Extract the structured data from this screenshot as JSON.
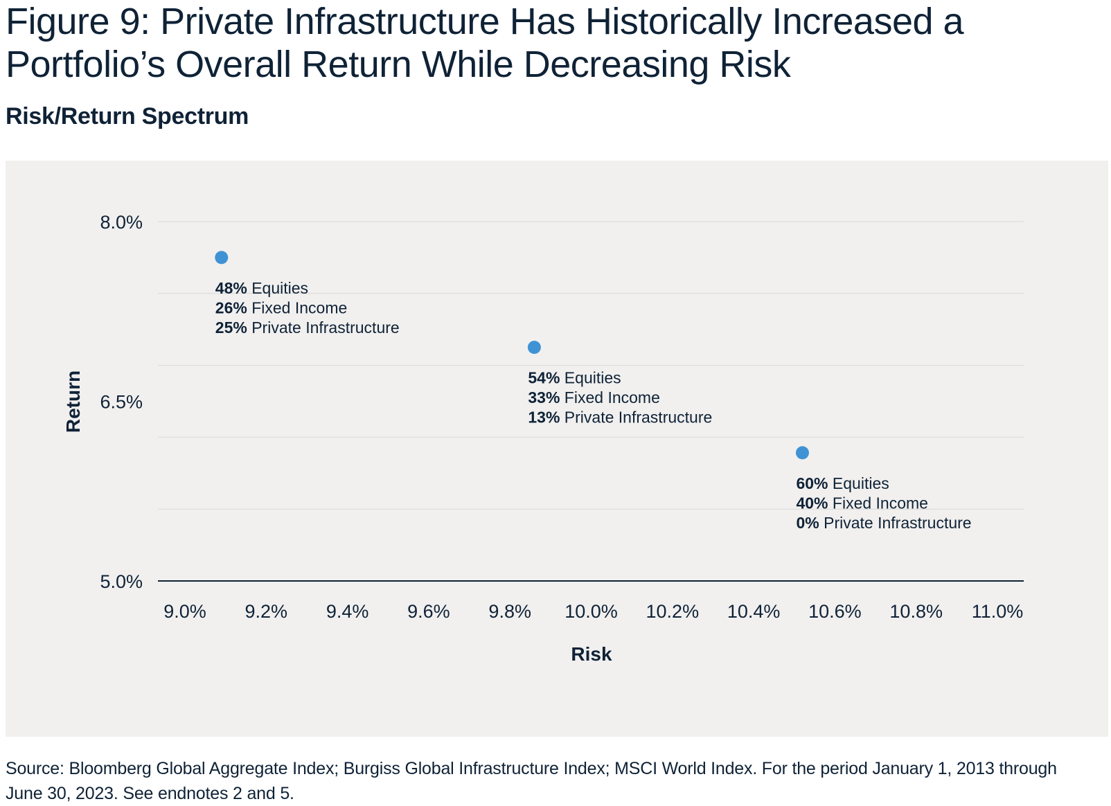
{
  "header": {
    "title": "Figure 9: Private Infrastructure Has Historically Increased a Portfolio’s Overall Return While Decreasing Risk",
    "subtitle": "Risk/Return Spectrum"
  },
  "footer": {
    "source": "Source: Bloomberg Global Aggregate Index; Burgiss Global Infrastructure Index; MSCI World Index. For the period January 1, 2013 through June 30, 2023. See endnotes 2 and 5."
  },
  "colors": {
    "marker": "#3f93d4",
    "text": "#0f2236",
    "panel": "#f1f0ef",
    "grid": "#d9d8d6",
    "axis": "#0f2236"
  },
  "chart_data": {
    "type": "scatter",
    "xlabel": "Risk",
    "ylabel": "Return",
    "xlim": [
      9.0,
      11.0
    ],
    "ylim": [
      5.0,
      8.0
    ],
    "x_ticks": [
      "9.0%",
      "9.2%",
      "9.4%",
      "9.6%",
      "9.8%",
      "10.0%",
      "10.2%",
      "10.4%",
      "10.6%",
      "10.8%",
      "11.0%"
    ],
    "y_ticks": [
      {
        "value": 8.0,
        "label": "8.0%"
      },
      {
        "value": 6.5,
        "label": "6.5%"
      },
      {
        "value": 5.0,
        "label": "5.0%"
      }
    ],
    "grid_lines_y": [
      8.0,
      7.4,
      6.8,
      6.2,
      5.6
    ],
    "grid": true,
    "points": [
      {
        "x": 9.09,
        "y": 7.7,
        "labels": [
          {
            "pct": "48%",
            "name": "Equities"
          },
          {
            "pct": "26%",
            "name": "Fixed Income"
          },
          {
            "pct": "25%",
            "name": "Private Infrastructure"
          }
        ]
      },
      {
        "x": 9.86,
        "y": 6.95,
        "labels": [
          {
            "pct": "54%",
            "name": "Equities"
          },
          {
            "pct": "33%",
            "name": "Fixed Income"
          },
          {
            "pct": "13%",
            "name": "Private Infrastructure"
          }
        ]
      },
      {
        "x": 10.52,
        "y": 6.07,
        "labels": [
          {
            "pct": "60%",
            "name": "Equities"
          },
          {
            "pct": "40%",
            "name": "Fixed Income"
          },
          {
            "pct": "0%",
            "name": "Private Infrastructure"
          }
        ]
      }
    ]
  }
}
